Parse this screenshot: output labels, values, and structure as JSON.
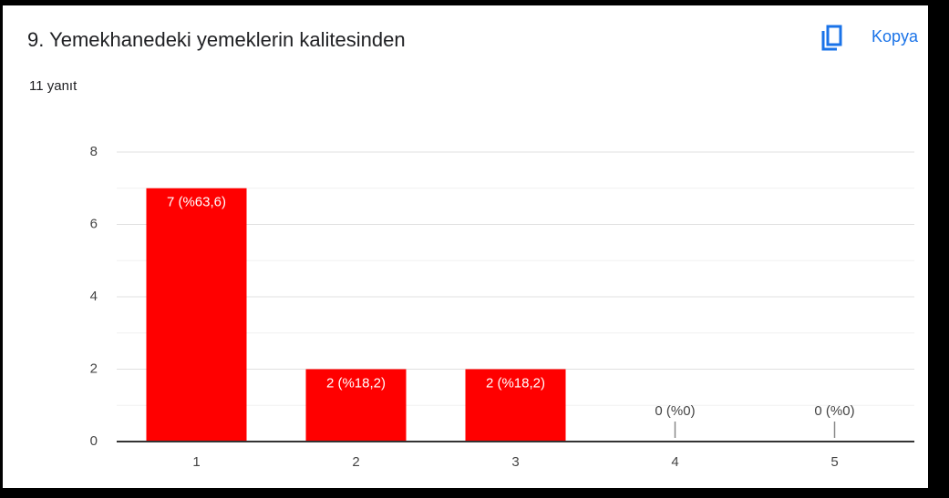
{
  "toolbar": {
    "copy": "Kopya"
  },
  "chart_data": {
    "type": "bar",
    "title": "9. Yemekhanedeki yemeklerin kalitesinden",
    "subtitle": "11 yanıt",
    "categories": [
      "1",
      "2",
      "3",
      "4",
      "5"
    ],
    "values": [
      7,
      2,
      2,
      0,
      0
    ],
    "value_labels": [
      "7 (%63,6)",
      "2 (%18,2)",
      "2 (%18,2)",
      "0 (%0)",
      "0 (%0)"
    ],
    "color": "#ff0000",
    "ylim": [
      0,
      8
    ],
    "yticks": [
      0,
      2,
      4,
      6,
      8
    ],
    "grid": true
  }
}
